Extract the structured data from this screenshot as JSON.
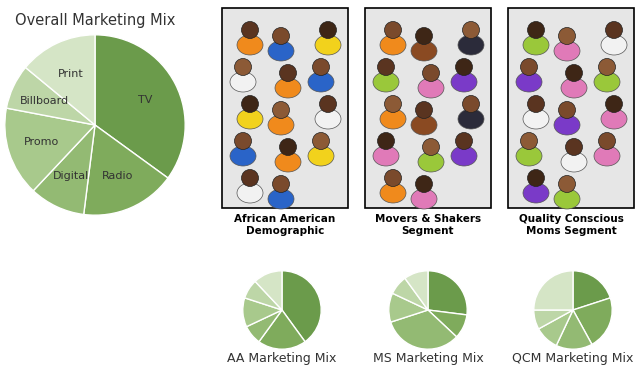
{
  "chart_data": [
    {
      "type": "pie",
      "title": "Overall Marketing Mix",
      "categories": [
        "TV",
        "Radio",
        "Digital",
        "Promo",
        "Billboard",
        "Print"
      ],
      "values": [
        35,
        17,
        10,
        16,
        8,
        14
      ],
      "colors": [
        "#6b9b4b",
        "#7fab5c",
        "#93ba73",
        "#a8c98c",
        "#bdd6a7",
        "#d5e5c6"
      ]
    },
    {
      "type": "pie",
      "title": "AA Marketing Mix",
      "values": [
        40,
        20,
        8,
        12,
        8,
        12
      ],
      "colors": [
        "#6b9b4b",
        "#7fab5c",
        "#93ba73",
        "#a8c98c",
        "#bdd6a7",
        "#d5e5c6"
      ]
    },
    {
      "type": "pie",
      "title": "MS Marketing Mix",
      "values": [
        27,
        10,
        33,
        12,
        8,
        10
      ],
      "colors": [
        "#6b9b4b",
        "#7fab5c",
        "#93ba73",
        "#a8c98c",
        "#bdd6a7",
        "#d5e5c6"
      ]
    },
    {
      "type": "pie",
      "title": "QCM Marketing Mix",
      "values": [
        20,
        22,
        15,
        10,
        8,
        25
      ],
      "colors": [
        "#6b9b4b",
        "#7fab5c",
        "#93ba73",
        "#a8c98c",
        "#bdd6a7",
        "#d5e5c6"
      ]
    }
  ],
  "segments": [
    {
      "caption": "African American\nDemographic"
    },
    {
      "caption": "Movers & Shakers\nSegment"
    },
    {
      "caption": "Quality Conscious\nMoms Segment"
    }
  ]
}
